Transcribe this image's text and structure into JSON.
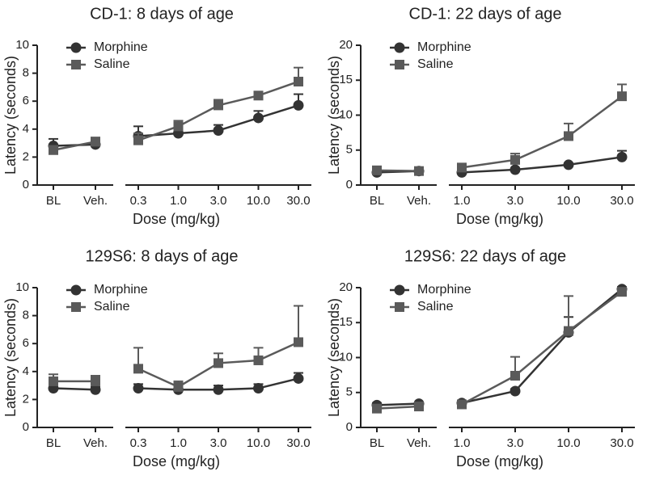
{
  "chart_data": [
    {
      "type": "line",
      "title": "CD-1: 8 days of age",
      "xlabel": "Dose (mg/kg)",
      "ylabel": "Latency (seconds)",
      "categories": [
        "BL",
        "Veh.",
        "0.3",
        "1.0",
        "3.0",
        "10.0",
        "30.0"
      ],
      "ylim": [
        0,
        10
      ],
      "yticks": [
        0,
        2,
        4,
        6,
        8,
        10
      ],
      "series": [
        {
          "name": "Morphine",
          "color": "#333333",
          "marker": "circle",
          "values": [
            2.8,
            2.9,
            3.5,
            3.7,
            3.9,
            4.8,
            5.7
          ],
          "errors": [
            0.5,
            0.2,
            0.7,
            0.2,
            0.4,
            0.5,
            0.8
          ]
        },
        {
          "name": "Saline",
          "color": "#5a5a5a",
          "marker": "square",
          "values": [
            2.5,
            3.1,
            3.2,
            4.2,
            5.7,
            6.4,
            7.4
          ],
          "errors": [
            0.3,
            0.3,
            0.5,
            0.4,
            0.4,
            0.2,
            1.0
          ]
        }
      ]
    },
    {
      "type": "line",
      "title": "CD-1: 22 days of age",
      "xlabel": "Dose (mg/kg)",
      "ylabel": "Latency (seconds)",
      "categories": [
        "BL",
        "Veh.",
        "1.0",
        "3.0",
        "10.0",
        "30.0"
      ],
      "ylim": [
        0,
        20
      ],
      "yticks": [
        0,
        5,
        10,
        15,
        20
      ],
      "series": [
        {
          "name": "Morphine",
          "color": "#333333",
          "marker": "circle",
          "values": [
            1.8,
            2.0,
            1.8,
            2.2,
            2.9,
            4.0
          ],
          "errors": [
            0.3,
            0.2,
            0.3,
            0.2,
            0.2,
            0.9
          ]
        },
        {
          "name": "Saline",
          "color": "#5a5a5a",
          "marker": "square",
          "values": [
            2.1,
            2.0,
            2.5,
            3.6,
            7.0,
            12.7
          ],
          "errors": [
            0.3,
            0.2,
            0.4,
            0.9,
            1.8,
            1.7
          ]
        }
      ]
    },
    {
      "type": "line",
      "title": "129S6: 8 days of age",
      "xlabel": "Dose (mg/kg)",
      "ylabel": "Latency (seconds)",
      "categories": [
        "BL",
        "Veh.",
        "0.3",
        "1.0",
        "3.0",
        "10.0",
        "30.0"
      ],
      "ylim": [
        0,
        10
      ],
      "yticks": [
        0,
        2,
        4,
        6,
        8,
        10
      ],
      "series": [
        {
          "name": "Morphine",
          "color": "#333333",
          "marker": "circle",
          "values": [
            2.8,
            2.7,
            2.8,
            2.7,
            2.7,
            2.8,
            3.5
          ],
          "errors": [
            0.3,
            0.2,
            0.3,
            0.2,
            0.3,
            0.3,
            0.4
          ]
        },
        {
          "name": "Saline",
          "color": "#5a5a5a",
          "marker": "square",
          "values": [
            3.3,
            3.3,
            4.2,
            2.9,
            4.6,
            4.8,
            6.1
          ],
          "errors": [
            0.5,
            0.4,
            1.5,
            0.4,
            0.7,
            0.9,
            2.6
          ]
        }
      ]
    },
    {
      "type": "line",
      "title": "129S6: 22 days of age",
      "xlabel": "Dose (mg/kg)",
      "ylabel": "Latency (seconds)",
      "categories": [
        "BL",
        "Veh.",
        "1.0",
        "3.0",
        "10.0",
        "30.0"
      ],
      "ylim": [
        0,
        20
      ],
      "yticks": [
        0,
        5,
        10,
        15,
        20
      ],
      "series": [
        {
          "name": "Morphine",
          "color": "#333333",
          "marker": "circle",
          "values": [
            3.2,
            3.4,
            3.5,
            5.2,
            13.6,
            19.8
          ],
          "errors": [
            0.3,
            0.2,
            0.3,
            0.3,
            2.2,
            0.3
          ]
        },
        {
          "name": "Saline",
          "color": "#5a5a5a",
          "marker": "square",
          "values": [
            2.7,
            3.0,
            3.3,
            7.4,
            13.8,
            19.4
          ],
          "errors": [
            0.3,
            0.2,
            0.3,
            2.7,
            5.0,
            0.3
          ]
        }
      ]
    }
  ]
}
